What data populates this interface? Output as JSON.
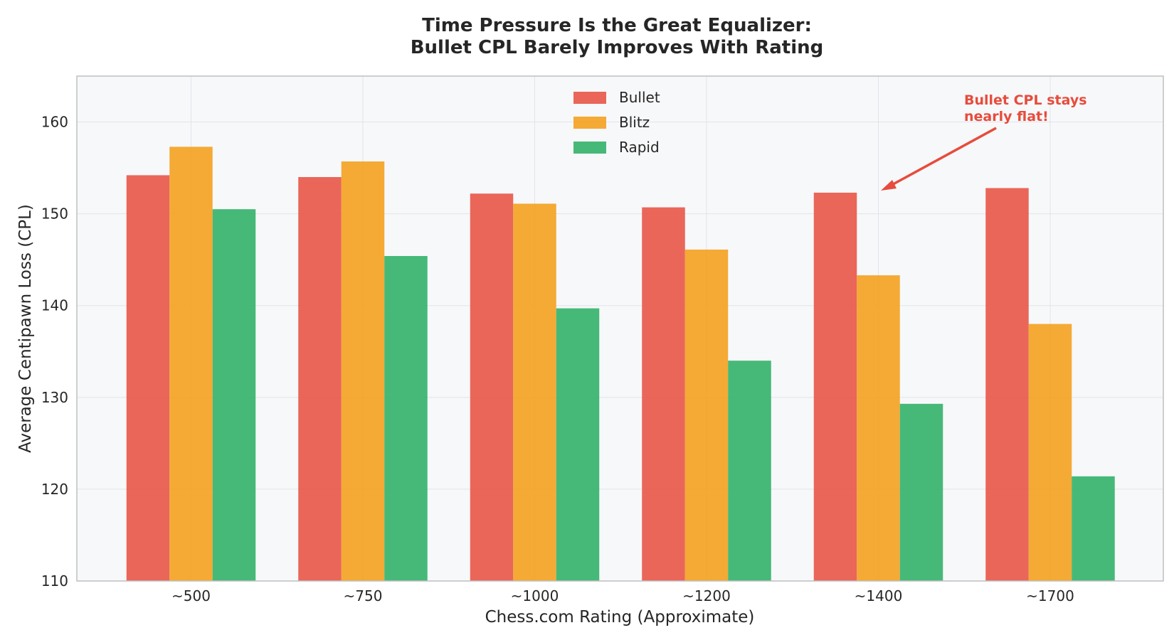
{
  "chart_data": {
    "type": "bar",
    "title_line1": "Time Pressure Is the Great Equalizer:",
    "title_line2": "Bullet CPL Barely Improves With Rating",
    "xlabel": "Chess.com Rating (Approximate)",
    "ylabel": "Average Centipawn Loss (CPL)",
    "ylim": [
      110,
      165
    ],
    "yticks": [
      110,
      120,
      130,
      140,
      150,
      160
    ],
    "grid": true,
    "legend_position": "top-center",
    "categories": [
      "~500",
      "~750",
      "~1000",
      "~1200",
      "~1400",
      "~1700"
    ],
    "series": [
      {
        "name": "Bullet",
        "color": "#e74c3c",
        "values": [
          154.2,
          154.0,
          152.2,
          150.7,
          152.3,
          152.8
        ]
      },
      {
        "name": "Blitz",
        "color": "#f39c12",
        "values": [
          157.3,
          155.7,
          151.1,
          146.1,
          143.3,
          138.0
        ]
      },
      {
        "name": "Rapid",
        "color": "#27ae60",
        "values": [
          150.5,
          145.4,
          139.7,
          134.0,
          129.3,
          121.4
        ]
      }
    ],
    "annotation": {
      "line1": "Bullet CPL stays",
      "line2": "nearly flat!",
      "color": "#e74c3c",
      "arrow_points_to": {
        "category": "~1400",
        "value": 152.5
      }
    }
  }
}
